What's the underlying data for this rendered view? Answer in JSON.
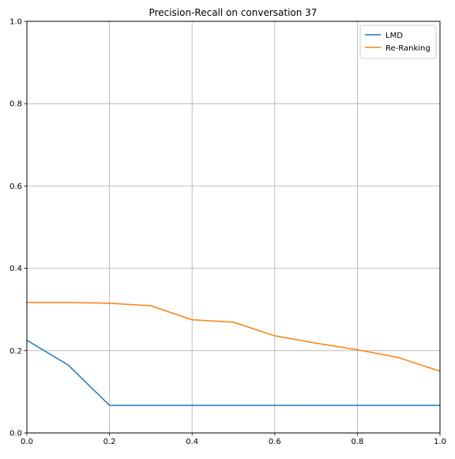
{
  "chart_data": {
    "type": "line",
    "title": "Precision-Recall on conversation 37",
    "xlabel": "",
    "ylabel": "",
    "xlim": [
      0.0,
      1.0
    ],
    "ylim": [
      0.0,
      1.0
    ],
    "x_ticks": [
      "0.0",
      "0.2",
      "0.4",
      "0.6",
      "0.8",
      "1.0"
    ],
    "y_ticks": [
      "0.0",
      "0.2",
      "0.4",
      "0.6",
      "0.8",
      "1.0"
    ],
    "grid": true,
    "legend_position": "top-right",
    "series": [
      {
        "name": "LMD",
        "color": "#1f77b4",
        "x": [
          0.0,
          0.1,
          0.2,
          0.3,
          0.4,
          0.5,
          0.6,
          0.7,
          0.8,
          0.9,
          1.0
        ],
        "y": [
          0.225,
          0.165,
          0.067,
          0.067,
          0.067,
          0.067,
          0.067,
          0.067,
          0.067,
          0.067,
          0.067
        ]
      },
      {
        "name": "Re-Ranking",
        "color": "#ff7f0e",
        "x": [
          0.0,
          0.1,
          0.2,
          0.3,
          0.4,
          0.5,
          0.6,
          0.7,
          0.8,
          0.9,
          1.0
        ],
        "y": [
          0.317,
          0.317,
          0.315,
          0.309,
          0.275,
          0.269,
          0.236,
          0.218,
          0.202,
          0.183,
          0.15
        ]
      }
    ]
  }
}
